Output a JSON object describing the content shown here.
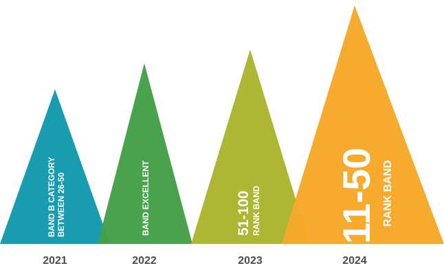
{
  "peaks": [
    {
      "year": "2021",
      "color": "#0f9aac",
      "lines": [
        "BAND B CATEGORY",
        "BETWEEN 26-50"
      ]
    },
    {
      "year": "2022",
      "color": "#43a047",
      "lines": [
        "BAND EXCELLENT"
      ]
    },
    {
      "year": "2023",
      "color": "#abb52c",
      "big": "51-100",
      "small": "RANK BAND"
    },
    {
      "year": "2024",
      "color": "#f6a828",
      "big": "11-50",
      "small": "RANK BAND"
    }
  ]
}
